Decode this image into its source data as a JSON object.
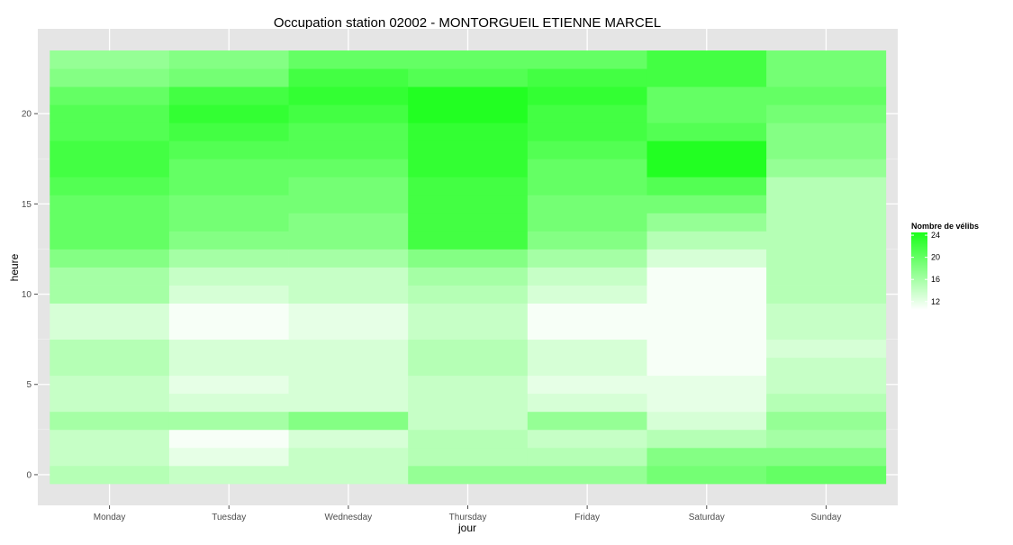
{
  "chart_data": {
    "type": "heatmap",
    "title": "Occupation station 02002 - MONTORGUEIL ETIENNE MARCEL",
    "xlabel": "jour",
    "ylabel": "heure",
    "x_categories": [
      "Monday",
      "Tuesday",
      "Wednesday",
      "Thursday",
      "Friday",
      "Saturday",
      "Sunday"
    ],
    "y_values": [
      0,
      1,
      2,
      3,
      4,
      5,
      6,
      7,
      8,
      9,
      10,
      11,
      12,
      13,
      14,
      15,
      16,
      17,
      18,
      19,
      20,
      21,
      22,
      23
    ],
    "y_ticks": [
      0,
      5,
      10,
      15,
      20
    ],
    "ylim": [
      -0.5,
      23.5
    ],
    "grid": true,
    "legend": {
      "title": "Nombre de vélibs",
      "position": "right",
      "breaks": [
        12,
        16,
        20,
        24
      ],
      "range": [
        10.5,
        24.5
      ],
      "color_low": "#ffffff",
      "color_high": "#1aff1a"
    },
    "values": [
      [
        15,
        14,
        14,
        17,
        17,
        19,
        20
      ],
      [
        14,
        12,
        14,
        15,
        15,
        18,
        18
      ],
      [
        14,
        11,
        13,
        15,
        14,
        15,
        16
      ],
      [
        16,
        16,
        18,
        14,
        17,
        13,
        17
      ],
      [
        14,
        13,
        13,
        14,
        13,
        12,
        15
      ],
      [
        14,
        12,
        13,
        14,
        12,
        12,
        14
      ],
      [
        15,
        13,
        13,
        15,
        13,
        11,
        14
      ],
      [
        15,
        13,
        13,
        15,
        13,
        11,
        13
      ],
      [
        13,
        11,
        12,
        14,
        11,
        11,
        14
      ],
      [
        13,
        11,
        12,
        14,
        11,
        11,
        14
      ],
      [
        16,
        13,
        14,
        15,
        13,
        11,
        15
      ],
      [
        16,
        14,
        14,
        16,
        14,
        11,
        15
      ],
      [
        18,
        16,
        16,
        18,
        16,
        13,
        15
      ],
      [
        20,
        18,
        18,
        22,
        18,
        15,
        15
      ],
      [
        20,
        19,
        18,
        22,
        19,
        17,
        15
      ],
      [
        20,
        19,
        19,
        22,
        19,
        19,
        15
      ],
      [
        21,
        20,
        19,
        22,
        20,
        21,
        15
      ],
      [
        22,
        20,
        20,
        23,
        20,
        24,
        17
      ],
      [
        22,
        21,
        21,
        23,
        21,
        24,
        18
      ],
      [
        21,
        22,
        21,
        23,
        22,
        21,
        18
      ],
      [
        21,
        23,
        22,
        24,
        22,
        20,
        19
      ],
      [
        20,
        22,
        23,
        24,
        23,
        20,
        20
      ],
      [
        18,
        19,
        22,
        21,
        22,
        22,
        19
      ],
      [
        17,
        18,
        20,
        20,
        20,
        22,
        19
      ]
    ]
  }
}
